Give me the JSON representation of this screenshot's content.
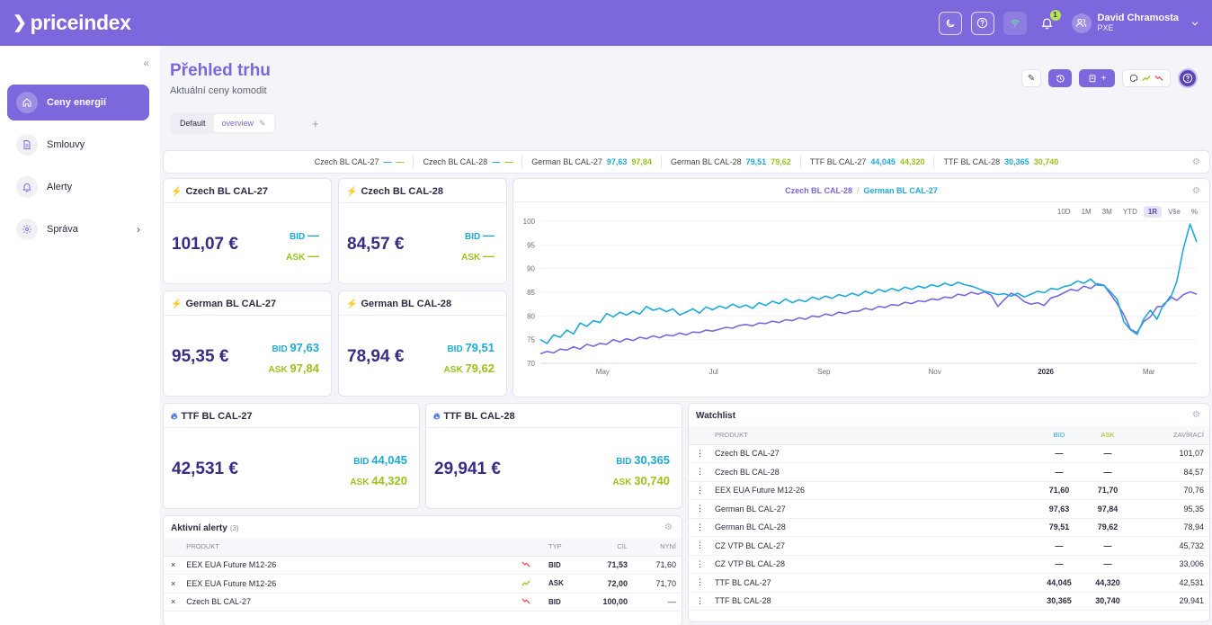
{
  "brand": {
    "name": "priceindex"
  },
  "user": {
    "name": "David Chramosta",
    "org": "PXE",
    "notifications": "1"
  },
  "sidebar": {
    "items": [
      {
        "label": "Ceny energií",
        "icon": "home-icon"
      },
      {
        "label": "Smlouvy",
        "icon": "document-icon"
      },
      {
        "label": "Alerty",
        "icon": "bell-icon"
      },
      {
        "label": "Správa",
        "icon": "gear-icon"
      }
    ]
  },
  "page": {
    "title": "Přehled trhu",
    "subtitle": "Aktuální ceny komodit"
  },
  "tabs": [
    {
      "label": "Default"
    },
    {
      "label": "overview"
    }
  ],
  "ticker": [
    {
      "name": "Czech BL CAL-27",
      "bid": "—",
      "ask": "—"
    },
    {
      "name": "Czech BL CAL-28",
      "bid": "—",
      "ask": "—"
    },
    {
      "name": "German BL CAL-27",
      "bid": "97,63",
      "ask": "97,84"
    },
    {
      "name": "German BL CAL-28",
      "bid": "79,51",
      "ask": "79,62"
    },
    {
      "name": "TTF BL CAL-27",
      "bid": "44,045",
      "ask": "44,320"
    },
    {
      "name": "TTF BL CAL-28",
      "bid": "30,365",
      "ask": "30,740"
    }
  ],
  "price_cards": [
    {
      "name": "Czech BL CAL-27",
      "price": "101,07 €",
      "bid_label": "BID",
      "bid": "—",
      "ask_label": "ASK",
      "ask": "—"
    },
    {
      "name": "Czech BL CAL-28",
      "price": "84,57 €",
      "bid_label": "BID",
      "bid": "—",
      "ask_label": "ASK",
      "ask": "—"
    },
    {
      "name": "German BL CAL-27",
      "price": "95,35 €",
      "bid_label": "BID",
      "bid": "97,63",
      "ask_label": "ASK",
      "ask": "97,84"
    },
    {
      "name": "German BL CAL-28",
      "price": "78,94 €",
      "bid_label": "BID",
      "bid": "79,51",
      "ask_label": "ASK",
      "ask": "79,62"
    },
    {
      "name": "TTF BL CAL-27",
      "price": "42,531 €",
      "bid_label": "BID",
      "bid": "44,045",
      "ask_label": "ASK",
      "ask": "44,320"
    },
    {
      "name": "TTF BL CAL-28",
      "price": "29,941 €",
      "bid_label": "BID",
      "bid": "30,365",
      "ask_label": "ASK",
      "ask": "30,740"
    }
  ],
  "chart_ranges": [
    "10D",
    "1M",
    "3M",
    "YTD",
    "1R",
    "Vše",
    "%"
  ],
  "chart_data": {
    "type": "line",
    "legend_placement": "top-center",
    "ylim": [
      70,
      100
    ],
    "yticks": [
      100,
      95,
      90,
      85,
      80,
      75,
      70
    ],
    "xticks": [
      "May",
      "Jul",
      "Sep",
      "Nov",
      "2026",
      "Mar"
    ],
    "series": [
      {
        "name": "Czech BL CAL-28",
        "color": "#7d67dc",
        "values": [
          72,
          72.5,
          72.2,
          73,
          72.8,
          73.5,
          73,
          74,
          73.6,
          74.2,
          74,
          75,
          74.5,
          75.2,
          74.8,
          75.5,
          75.2,
          75.8,
          75.4,
          76,
          75.8,
          76.4,
          76,
          76.6,
          76.5,
          77,
          76.8,
          77.2,
          77.6,
          77.4,
          78,
          78.2,
          77.9,
          78.5,
          78.4,
          78.9,
          78.6,
          79.2,
          79,
          79.6,
          79.3,
          80,
          79.8,
          80.4,
          80.1,
          80.8,
          80.5,
          81,
          81,
          81.6,
          81.3,
          82,
          81.8,
          82.4,
          82.2,
          82.9,
          82.6,
          83.2,
          83,
          83.6,
          83.4,
          84,
          83.8,
          84.6,
          84.3,
          85,
          84.6,
          85.1,
          84.4,
          82,
          83.5,
          84.8,
          84.2,
          83,
          82.5,
          82.8,
          82.2,
          83.8,
          84.2,
          84.9,
          85.6,
          85.3,
          86.3,
          85.8,
          86.8,
          86.5,
          84.6,
          82.6,
          80.3,
          77.2,
          76.5,
          78.8,
          79.8,
          81.9,
          82.1,
          84.1,
          83.3,
          84.5,
          85.1,
          84.6
        ]
      },
      {
        "name": "German BL CAL-27",
        "color": "#1eaad6",
        "values": [
          75,
          74.2,
          76,
          75.5,
          77,
          76.2,
          78.5,
          77.8,
          79,
          78.6,
          80.5,
          79.8,
          80.8,
          80.2,
          81,
          80.4,
          82,
          81.2,
          81.6,
          80.9,
          81.5,
          80.2,
          80.8,
          81.5,
          80.6,
          81.9,
          81.3,
          82.1,
          81.6,
          82.5,
          81.8,
          82.3,
          81.6,
          82.8,
          82.2,
          83.1,
          82.6,
          83.6,
          82.8,
          83.4,
          83,
          84,
          83.5,
          84.2,
          83.7,
          84.5,
          84.1,
          84.8,
          84.3,
          85.2,
          84.7,
          85.6,
          85.1,
          85.8,
          85.3,
          86.1,
          85.6,
          86.3,
          85.9,
          86.6,
          86.2,
          86.9,
          86.4,
          87.1,
          86.6,
          86.3,
          85.8,
          85.2,
          84.9,
          84.5,
          84.7,
          84.2,
          84.8,
          84,
          84.6,
          85.2,
          84.9,
          85.8,
          85.6,
          86.2,
          86.5,
          87.4,
          86.9,
          87.8,
          86.5,
          86.4,
          85.1,
          83.5,
          78.8,
          77.1,
          76.1,
          79.3,
          81.2,
          79.3,
          82.5,
          83.6,
          87.3,
          94.3,
          99.4,
          95.6
        ]
      }
    ]
  },
  "alerts": {
    "title": "Aktivní alerty",
    "count": "(3)",
    "cols": [
      "PRODUKT",
      "TYP",
      "CÍL",
      "NYNÍ"
    ],
    "rows": [
      {
        "product": "EEX EUA Future M12-26",
        "trend": "down",
        "type": "BID",
        "target": "71,53",
        "now": "71,60"
      },
      {
        "product": "EEX EUA Future M12-26",
        "trend": "up",
        "type": "ASK",
        "target": "72,00",
        "now": "71,70"
      },
      {
        "product": "Czech BL CAL-27",
        "trend": "down",
        "type": "BID",
        "target": "100,00",
        "now": "—"
      }
    ]
  },
  "watchlist": {
    "title": "Watchlist",
    "cols": [
      "PRODUKT",
      "BID",
      "ASK",
      "ZAVÍRACÍ"
    ],
    "rows": [
      {
        "product": "Czech BL CAL-27",
        "bid": "—",
        "ask": "—",
        "close": "101,07"
      },
      {
        "product": "Czech BL CAL-28",
        "bid": "—",
        "ask": "—",
        "close": "84,57"
      },
      {
        "product": "EEX EUA Future M12-26",
        "bid": "71,60",
        "ask": "71,70",
        "close": "70,76"
      },
      {
        "product": "German BL CAL-27",
        "bid": "97,63",
        "ask": "97,84",
        "close": "95,35"
      },
      {
        "product": "German BL CAL-28",
        "bid": "79,51",
        "ask": "79,62",
        "close": "78,94"
      },
      {
        "product": "CZ VTP BL CAL-27",
        "bid": "—",
        "ask": "—",
        "close": "45,732"
      },
      {
        "product": "CZ VTP BL CAL-28",
        "bid": "—",
        "ask": "—",
        "close": "33,006"
      },
      {
        "product": "TTF BL CAL-27",
        "bid": "44,045",
        "ask": "44,320",
        "close": "42,531"
      },
      {
        "product": "TTF BL CAL-28",
        "bid": "30,365",
        "ask": "30,740",
        "close": "29,941"
      }
    ]
  }
}
